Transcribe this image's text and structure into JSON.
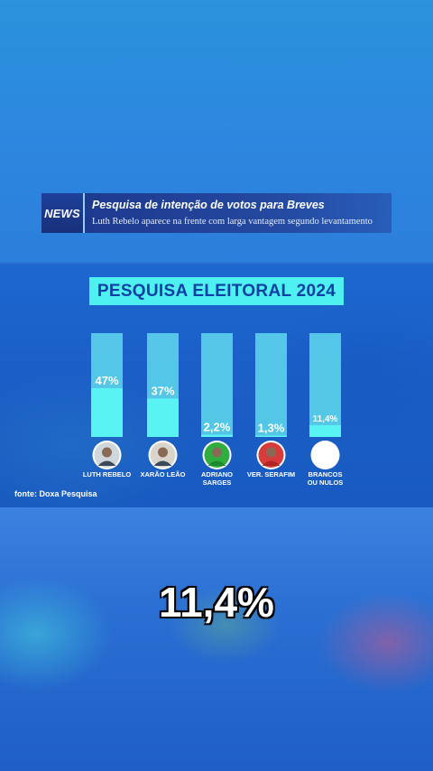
{
  "news_banner": {
    "tag": "NEWS",
    "title": "Pesquisa de intenção de votos para Breves",
    "subtitle": "Luth Rebelo aparece na frente com larga vantagem segundo levantamento"
  },
  "chart_data": {
    "type": "bar",
    "title": "PESQUISA ELEITORAL 2024",
    "categories": [
      "LUTH REBELO",
      "XARÃO LEÃO",
      "ADRIANO SARGES",
      "VER. SERAFIM",
      "BRANCOS OU NULOS"
    ],
    "category_lines": [
      [
        "LUTH REBELO"
      ],
      [
        "XARÃO LEÃO"
      ],
      [
        "ADRIANO",
        "SARGES"
      ],
      [
        "VER. SERAFIM"
      ],
      [
        "BRANCOS",
        "OU NULOS"
      ]
    ],
    "values": [
      47,
      37,
      2.2,
      1.3,
      11.4
    ],
    "value_labels": [
      "47%",
      "37%",
      "2,2%",
      "1,3%",
      "11,4%"
    ],
    "avatar_colors": [
      "#cfd6dc",
      "#d9d4cc",
      "#2fae3f",
      "#d83b3b",
      "#ffffff"
    ],
    "ylim": [
      0,
      100
    ],
    "colors": {
      "track": "#5fd8ec",
      "fill": "#59f3f3",
      "label": "#ffffff"
    },
    "source": "fonte: Doxa Pesquisa"
  },
  "highlight_value": "11,4%"
}
